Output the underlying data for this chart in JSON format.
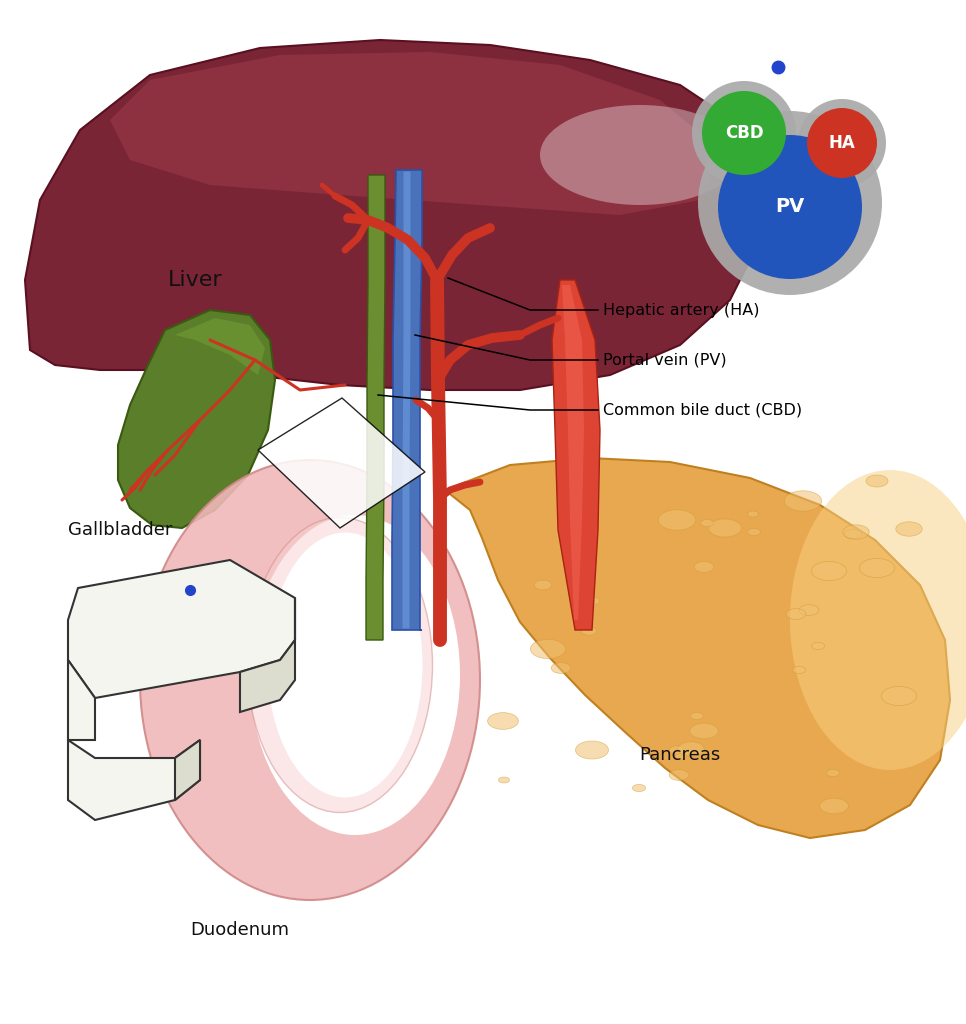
{
  "background_color": "#ffffff",
  "liver_color": "#7a2535",
  "liver_edge_color": "#5a1020",
  "liver_highlight_color": "#c05060",
  "liver_dark_color": "#4a1020",
  "gallbladder_color": "#5a7e2a",
  "gallbladder_edge": "#3a5a10",
  "bile_duct_color": "#6a8e30",
  "bile_duct_edge": "#3a5a10",
  "portal_vein_color": "#4a72bb",
  "portal_vein_light": "#7aaaee",
  "hepatic_artery_color": "#cc3322",
  "aorta_color": "#cc3322",
  "pancreas_color": "#e8a850",
  "pancreas_edge": "#c08020",
  "pancreas_texture": "#f0c070",
  "duodenum_color": "#f0b8b8",
  "duodenum_edge": "#d08888",
  "duodenum_inner_color": "#f5cccc",
  "probe_color": "#f0f0ea",
  "probe_edge": "#333333",
  "probe_shadow": "#ccccbb",
  "cbd_color": "#33aa33",
  "ha_color": "#cc3322",
  "pv_color": "#2255bb",
  "gray_color": "#aaaaaa",
  "blue_dot": "#2244cc",
  "label_liver": "Liver",
  "label_gallbladder": "Gallbladder",
  "label_duodenum": "Duodenum",
  "label_pancreas": "Pancreas",
  "label_ha": "Hepatic artery (HA)",
  "label_pv": "Portal vein (PV)",
  "label_cbd": "Common bile duct (CBD)",
  "label_CBD": "CBD",
  "label_HA": "HA",
  "label_PV": "PV",
  "label_fontsize": 13,
  "annot_fontsize": 11.5
}
